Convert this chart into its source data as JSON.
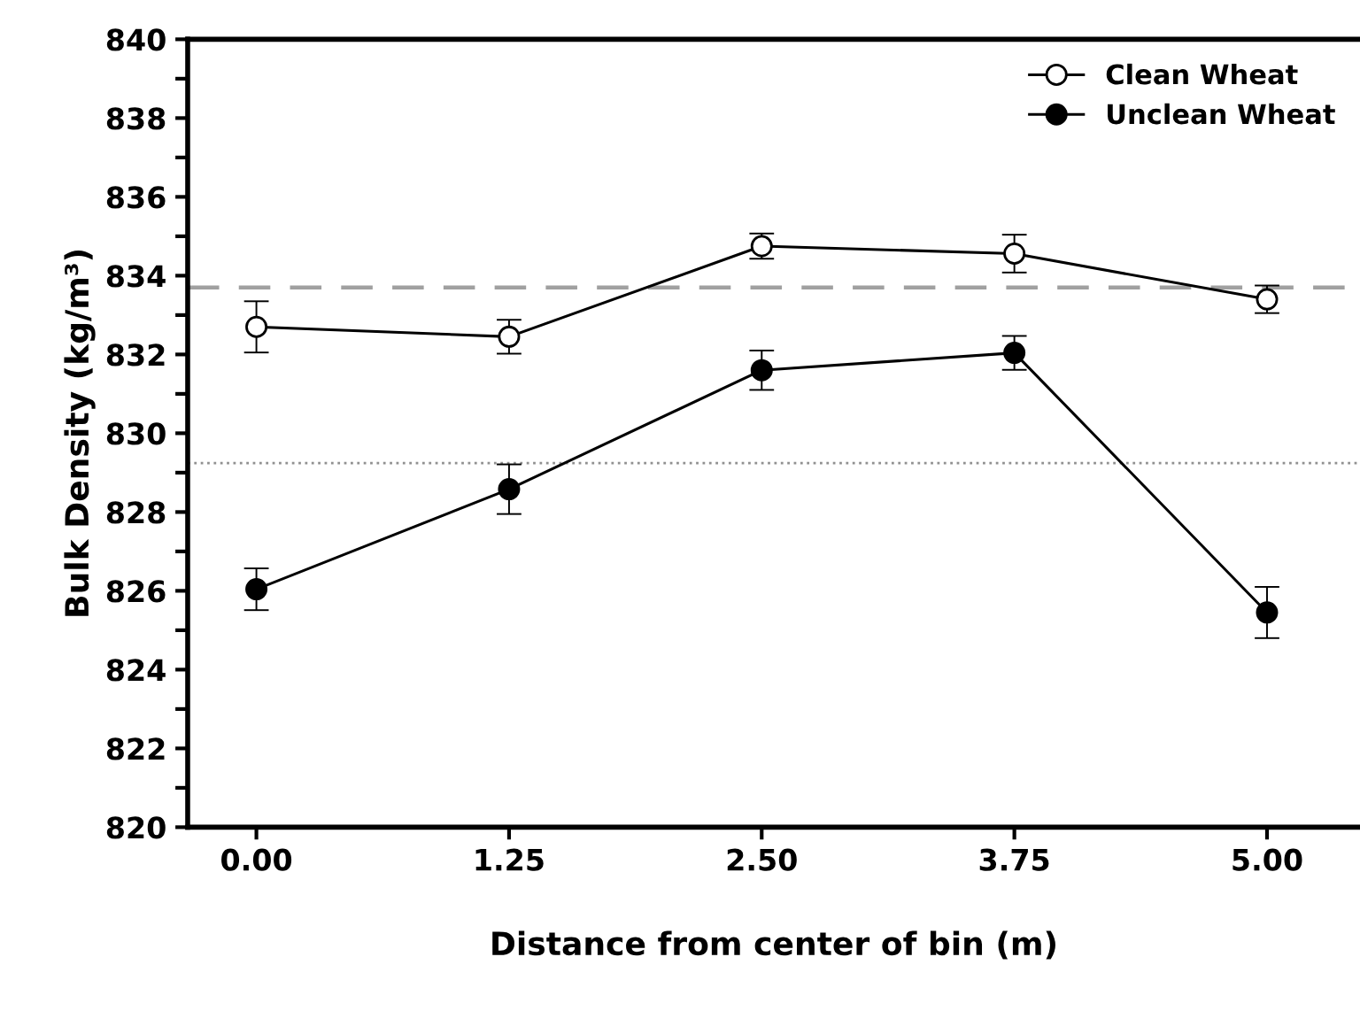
{
  "chart_data": {
    "type": "line",
    "xlabel": "Distance from center of bin (m)",
    "ylabel": "Bulk Density (kg/m³)",
    "x": [
      0,
      1.25,
      2.5,
      3.75,
      5
    ],
    "xlim": [
      -0.34,
      5.46
    ],
    "xticks": [
      {
        "value": 0,
        "label": "0.00"
      },
      {
        "value": 1.25,
        "label": "1.25"
      },
      {
        "value": 2.5,
        "label": "2.50"
      },
      {
        "value": 3.75,
        "label": "3.75"
      },
      {
        "value": 5,
        "label": "5.00"
      }
    ],
    "ylim": [
      820,
      840
    ],
    "yticks": [
      820,
      {
        "value": 821,
        "label": null
      },
      822,
      {
        "value": 823,
        "label": null
      },
      824,
      {
        "value": 825,
        "label": null
      },
      826,
      {
        "value": 827,
        "label": null
      },
      828,
      {
        "value": 829,
        "label": null
      },
      830,
      {
        "value": 831,
        "label": null
      },
      832,
      {
        "value": 833,
        "label": null
      },
      834,
      {
        "value": 835,
        "label": null
      },
      836,
      {
        "value": 837,
        "label": null
      },
      838,
      {
        "value": 839,
        "label": null
      },
      840
    ],
    "series": [
      {
        "name": "Clean Wheat",
        "color": "#000000",
        "marker": "circle",
        "values": [
          832.7,
          832.45,
          834.75,
          834.56,
          833.4
        ],
        "errors": [
          0.65,
          0.43,
          0.32,
          0.48,
          0.35
        ]
      },
      {
        "name": "Unclean Wheat",
        "color": "#000000",
        "marker": "circle",
        "values": [
          826.04,
          828.58,
          831.6,
          832.04,
          825.45
        ],
        "errors": [
          0.53,
          0.63,
          0.5,
          0.43,
          0.65
        ]
      }
    ],
    "ref_lines": [
      {
        "axis": "y",
        "value": 833.7,
        "color": "#a0a0a0",
        "line_style": "dashed"
      },
      {
        "axis": "y",
        "value": 829.24,
        "color": "#909090",
        "line_style": "dotted"
      }
    ],
    "legend": "top right",
    "grid": false
  }
}
